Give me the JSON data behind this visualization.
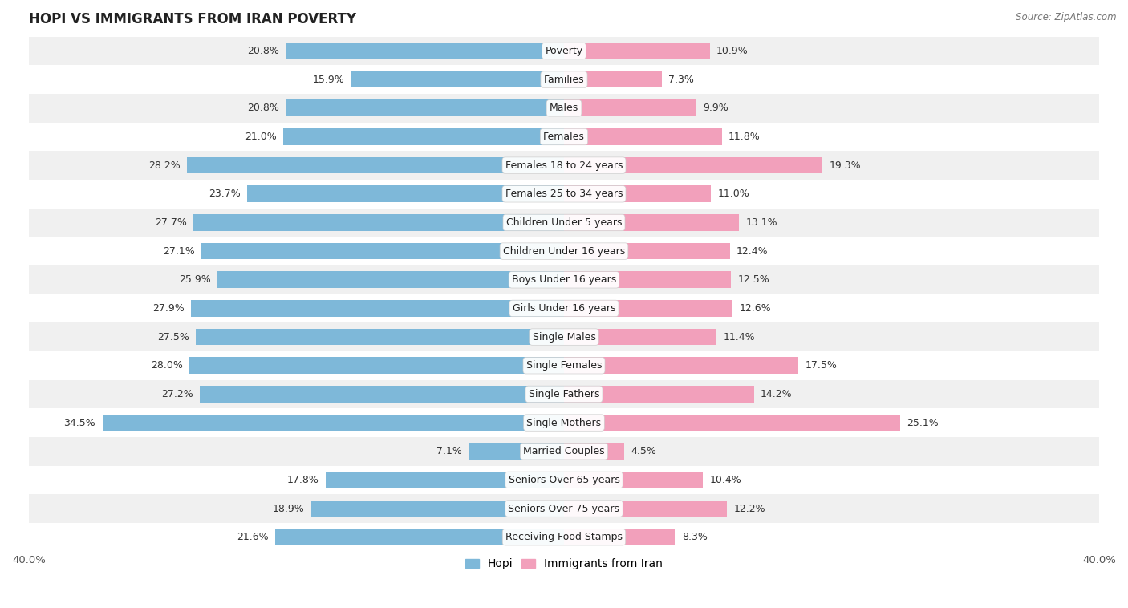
{
  "title": "HOPI VS IMMIGRANTS FROM IRAN POVERTY",
  "source": "Source: ZipAtlas.com",
  "categories": [
    "Poverty",
    "Families",
    "Males",
    "Females",
    "Females 18 to 24 years",
    "Females 25 to 34 years",
    "Children Under 5 years",
    "Children Under 16 years",
    "Boys Under 16 years",
    "Girls Under 16 years",
    "Single Males",
    "Single Females",
    "Single Fathers",
    "Single Mothers",
    "Married Couples",
    "Seniors Over 65 years",
    "Seniors Over 75 years",
    "Receiving Food Stamps"
  ],
  "hopi_values": [
    20.8,
    15.9,
    20.8,
    21.0,
    28.2,
    23.7,
    27.7,
    27.1,
    25.9,
    27.9,
    27.5,
    28.0,
    27.2,
    34.5,
    7.1,
    17.8,
    18.9,
    21.6
  ],
  "iran_values": [
    10.9,
    7.3,
    9.9,
    11.8,
    19.3,
    11.0,
    13.1,
    12.4,
    12.5,
    12.6,
    11.4,
    17.5,
    14.2,
    25.1,
    4.5,
    10.4,
    12.2,
    8.3
  ],
  "hopi_color": "#7eb8d9",
  "iran_color": "#f2a0bb",
  "axis_max": 40.0,
  "bar_height": 0.58,
  "bg_color": "#ffffff",
  "row_colors": [
    "#f0f0f0",
    "#ffffff"
  ],
  "label_fontsize": 9.0,
  "value_fontsize": 9.0,
  "title_fontsize": 12,
  "source_fontsize": 8.5,
  "legend_labels": [
    "Hopi",
    "Immigrants from Iran"
  ]
}
